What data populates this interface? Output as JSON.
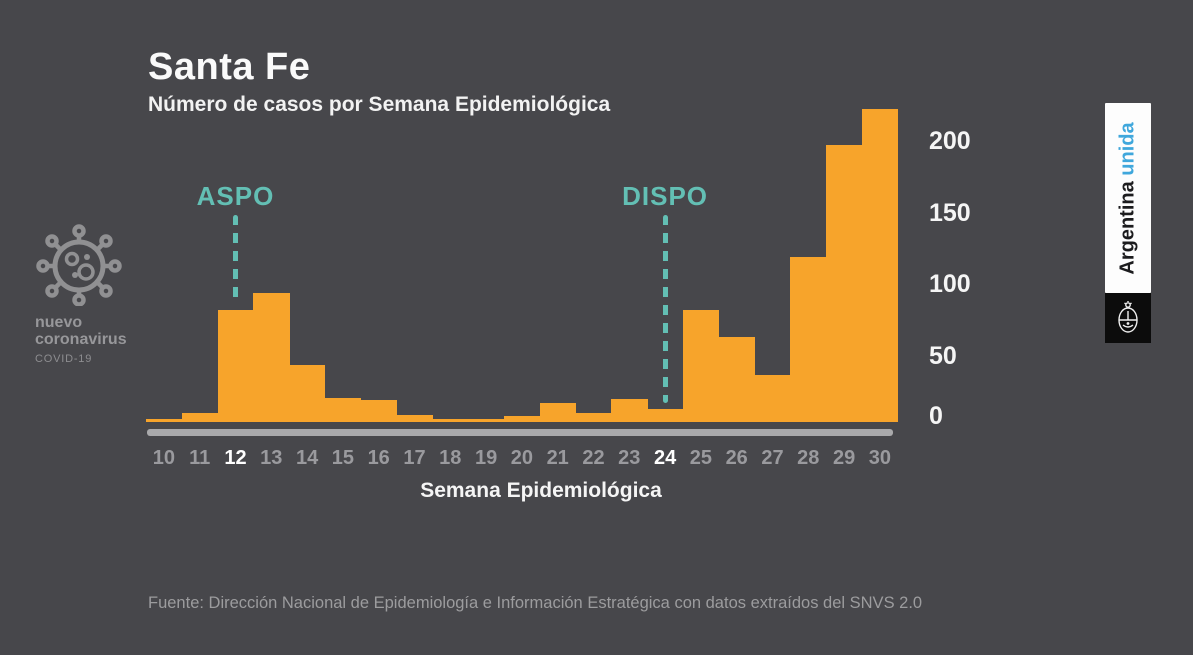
{
  "header": {
    "title": "Santa Fe",
    "subtitle": "Número de casos por Semana Epidemiológica"
  },
  "chart_data": {
    "type": "bar",
    "title": "Santa Fe",
    "subtitle": "Número de casos por Semana Epidemiológica",
    "xlabel": "Semana Epidemiológica",
    "ylabel": "",
    "categories": [
      10,
      11,
      12,
      13,
      14,
      15,
      16,
      17,
      18,
      19,
      20,
      21,
      22,
      23,
      24,
      25,
      26,
      27,
      28,
      29,
      30
    ],
    "values": [
      2,
      6,
      78,
      90,
      40,
      17,
      15,
      5,
      2,
      2,
      4,
      13,
      6,
      16,
      9,
      78,
      59,
      33,
      115,
      193,
      218
    ],
    "yticks": [
      0,
      50,
      100,
      150,
      200
    ],
    "ylim": [
      0,
      230
    ],
    "grid": false,
    "legend": "none",
    "highlighted_weeks": [
      12,
      24
    ],
    "annotations": [
      {
        "label": "ASPO",
        "week": 12
      },
      {
        "label": "DISPO",
        "week": 24
      }
    ],
    "bar_color": "#F7A42B",
    "annotation_color": "#63BFB4"
  },
  "brand_left": {
    "icon": "coronavirus-icon",
    "line1": "nuevo",
    "line2": "coronavirus",
    "line3": "COVID-19"
  },
  "brand_right": {
    "text_black": "Argentina",
    "text_blue": "unida",
    "emblem": "argentina-coat-of-arms"
  },
  "footer": {
    "source": "Fuente: Dirección Nacional de Epidemiología e Información Estratégica con datos extraídos del SNVS 2.0"
  },
  "colors": {
    "background": "#47474B",
    "bar_orange": "#F7A42B",
    "baseline_orange": "#BD852D",
    "axis_gray": "#A9A9AB",
    "teal_annotation": "#63BFB4",
    "text_white": "#F5F5F5",
    "text_gray": "#9A9A9E",
    "unida_blue": "#3FA7DC"
  }
}
